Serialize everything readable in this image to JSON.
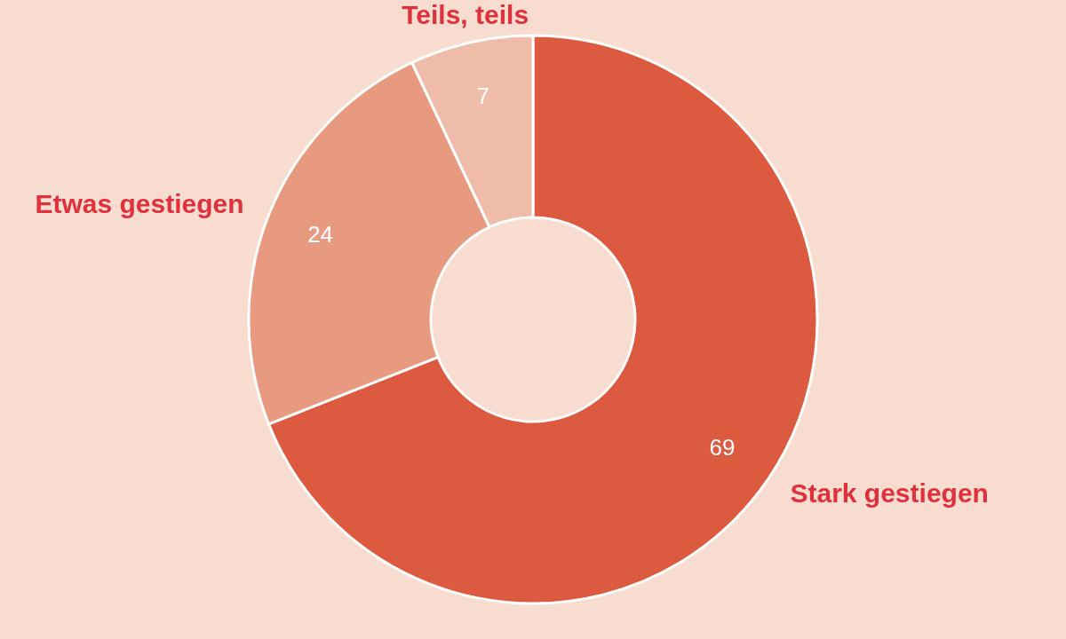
{
  "chart_data": {
    "type": "donut",
    "categories": [
      "Stark gestiegen",
      "Etwas gestiegen",
      "Teils, teils"
    ],
    "values": [
      69,
      24,
      7
    ],
    "colors": [
      "#dc5a40",
      "#e89a80",
      "#f0bcaa"
    ],
    "data_labels": true
  }
}
